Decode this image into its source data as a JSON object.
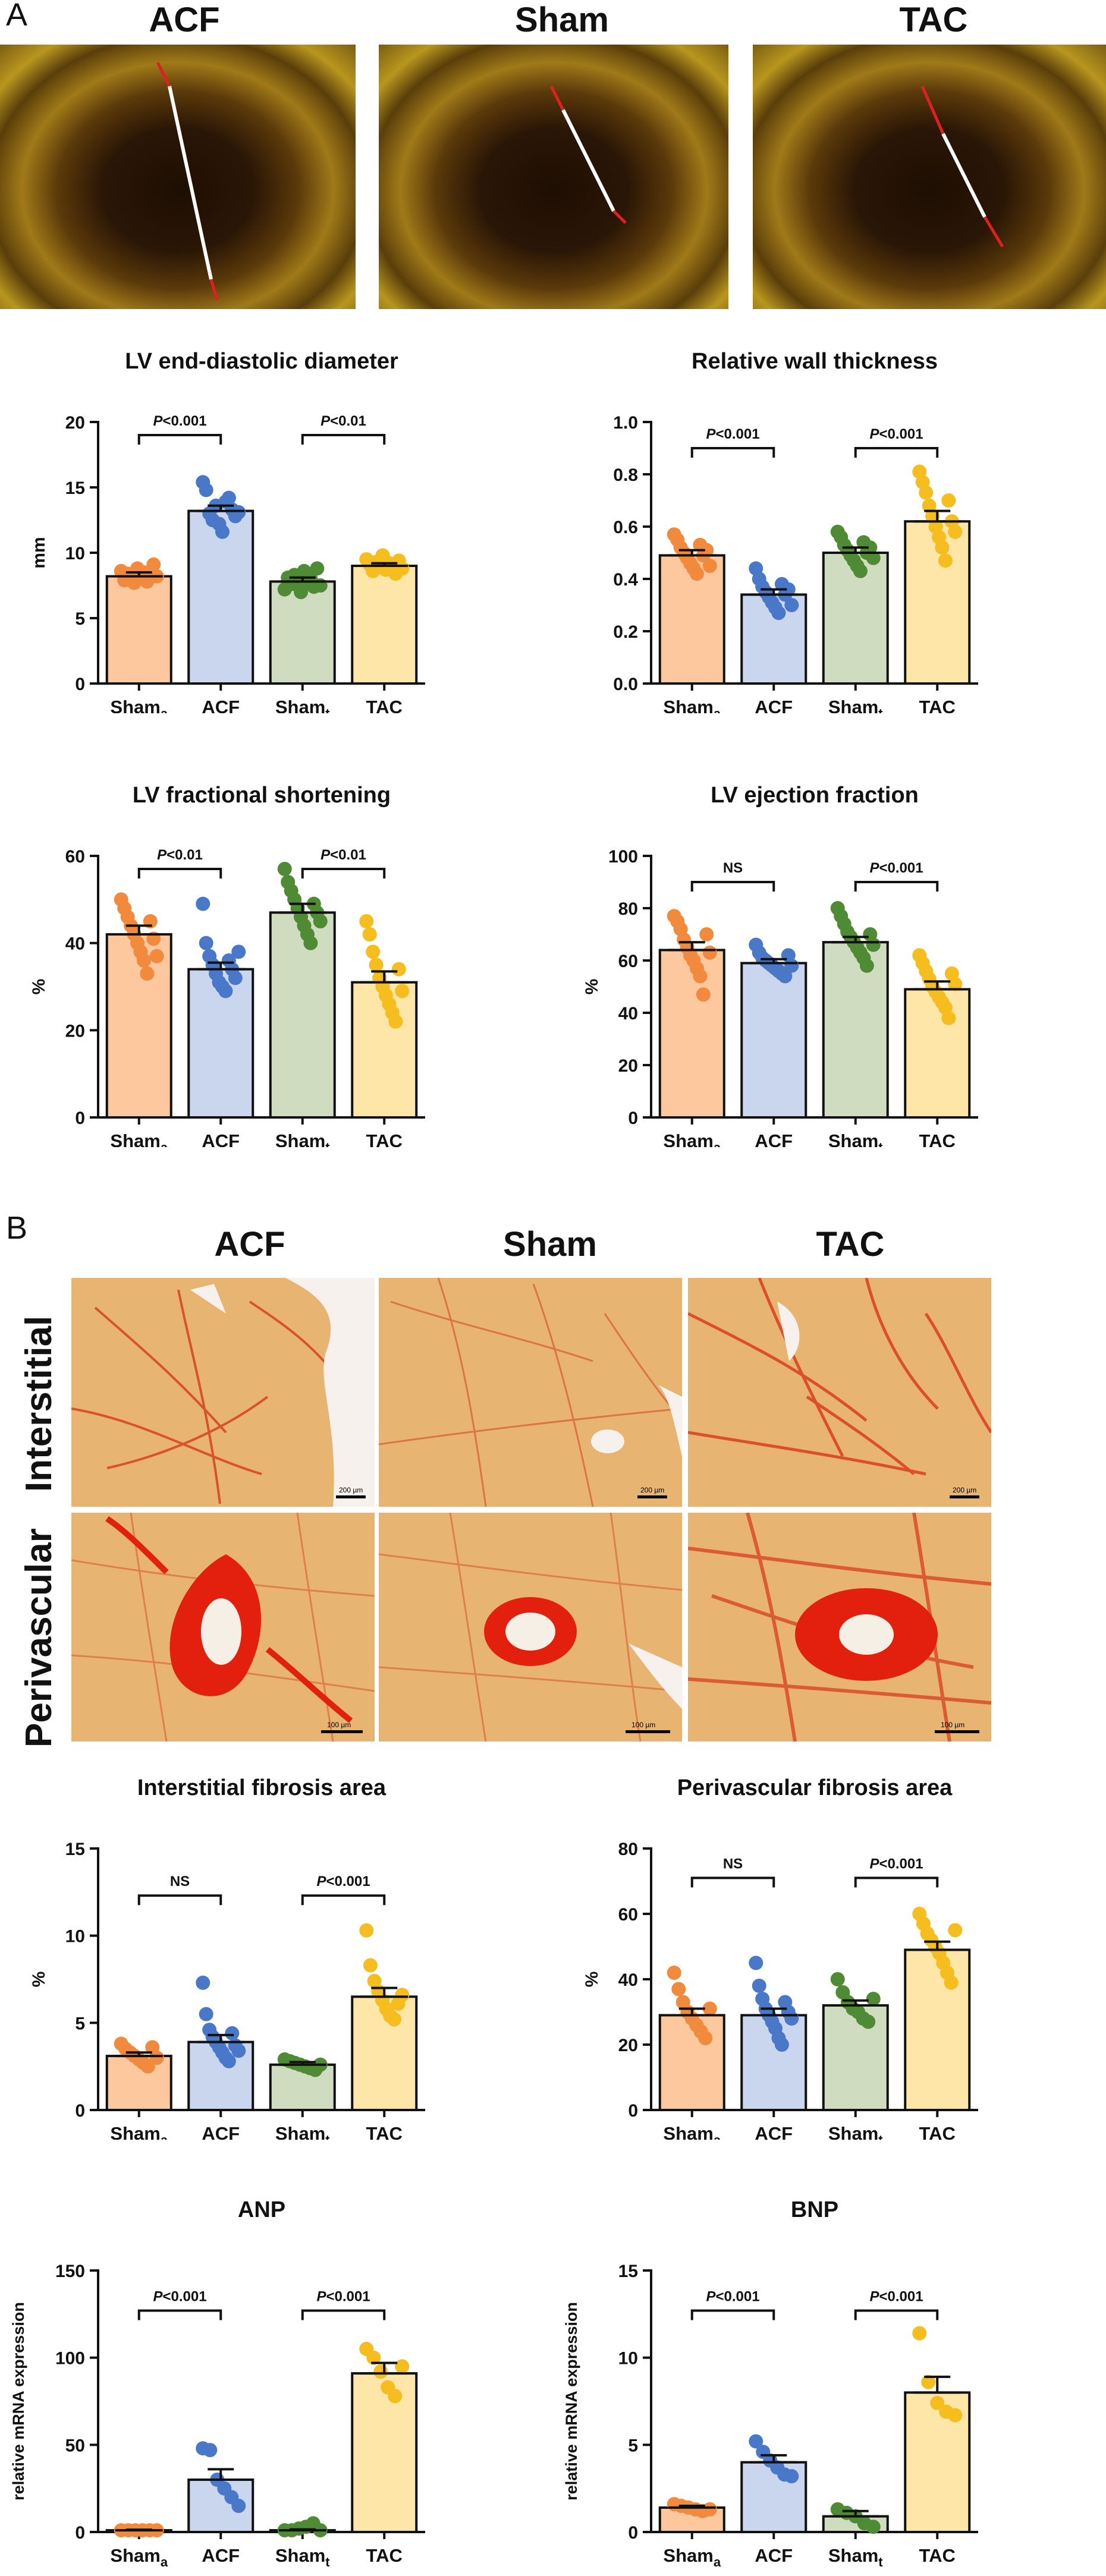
{
  "panels": {
    "a_label": "A",
    "b_label": "B"
  },
  "echo_titles": [
    "ACF",
    "Sham",
    "TAC"
  ],
  "histo_titles": [
    "ACF",
    "Sham",
    "TAC"
  ],
  "histo_rows": [
    "Interstitial",
    "Perivascular"
  ],
  "scale_labels": [
    "200 µm",
    "200 µm",
    "200 µm",
    "100 µm",
    "100 µm",
    "100 µm"
  ],
  "group_colors": [
    "#f28a3e",
    "#4a78c8",
    "#4f8a34",
    "#f5be1e"
  ],
  "group_fills": [
    "#fdc89e",
    "#c9d6ee",
    "#cfdcc0",
    "#fde6a8"
  ],
  "chart_data": [
    {
      "type": "bar",
      "title": "LV end-diastolic diameter",
      "ylabel": "mm",
      "categories": [
        [
          "Sham",
          "a"
        ],
        [
          "ACF",
          ""
        ],
        [
          "Sham",
          "t"
        ],
        [
          "TAC",
          ""
        ]
      ],
      "ylim": [
        0,
        20
      ],
      "yticks": [
        0,
        5,
        10,
        15,
        20
      ],
      "values": [
        8.2,
        13.2,
        7.8,
        9.0
      ],
      "errors": [
        0.3,
        0.4,
        0.3,
        0.2
      ],
      "points": [
        [
          8.6,
          7.9,
          8.4,
          8.0,
          7.7,
          8.8,
          8.3,
          8.5,
          7.8,
          8.1,
          9.1,
          8.2
        ],
        [
          15.4,
          14.8,
          13.0,
          12.5,
          13.6,
          12.2,
          11.6,
          13.9,
          14.2,
          13.3,
          12.8,
          13.1
        ],
        [
          7.2,
          8.1,
          7.6,
          8.3,
          7.9,
          7.0,
          8.6,
          7.7,
          8.0,
          7.4,
          8.8,
          7.5
        ],
        [
          9.5,
          9.1,
          8.6,
          9.3,
          8.9,
          9.8,
          8.7,
          9.2,
          9.0,
          8.4,
          9.4,
          8.8
        ]
      ],
      "sig": [
        {
          "label": "P<0.001",
          "p": "P",
          "rest": "<0.001",
          "pair": [
            0,
            1
          ],
          "y": 19.0
        },
        {
          "label": "P<0.01",
          "p": "P",
          "rest": "<0.01",
          "pair": [
            2,
            3
          ],
          "y": 19.0
        }
      ]
    },
    {
      "type": "bar",
      "title": "Relative wall thickness",
      "ylabel": "",
      "categories": [
        [
          "Sham",
          "a"
        ],
        [
          "ACF",
          ""
        ],
        [
          "Sham",
          "t"
        ],
        [
          "TAC",
          ""
        ]
      ],
      "ylim": [
        0,
        1.0
      ],
      "yticks": [
        0.0,
        0.2,
        0.4,
        0.6,
        0.8,
        1.0
      ],
      "values": [
        0.49,
        0.34,
        0.5,
        0.62
      ],
      "errors": [
        0.02,
        0.02,
        0.02,
        0.04
      ],
      "points": [
        [
          0.57,
          0.55,
          0.52,
          0.5,
          0.48,
          0.46,
          0.44,
          0.42,
          0.53,
          0.49,
          0.51,
          0.45
        ],
        [
          0.44,
          0.4,
          0.37,
          0.35,
          0.33,
          0.31,
          0.29,
          0.27,
          0.38,
          0.34,
          0.36,
          0.3
        ],
        [
          0.58,
          0.56,
          0.53,
          0.51,
          0.49,
          0.47,
          0.45,
          0.43,
          0.54,
          0.5,
          0.52,
          0.48
        ],
        [
          0.81,
          0.77,
          0.73,
          0.68,
          0.64,
          0.6,
          0.56,
          0.52,
          0.47,
          0.7,
          0.62,
          0.58
        ]
      ],
      "sig": [
        {
          "label": "P<0.001",
          "p": "P",
          "rest": "<0.001",
          "pair": [
            0,
            1
          ],
          "y": 0.9
        },
        {
          "label": "P<0.001",
          "p": "P",
          "rest": "<0.001",
          "pair": [
            2,
            3
          ],
          "y": 0.9
        }
      ]
    },
    {
      "type": "bar",
      "title": "LV fractional shortening",
      "ylabel": "%",
      "categories": [
        [
          "Sham",
          "a"
        ],
        [
          "ACF",
          ""
        ],
        [
          "Sham",
          "t"
        ],
        [
          "TAC",
          ""
        ]
      ],
      "ylim": [
        0,
        60
      ],
      "yticks": [
        0,
        20,
        40,
        60
      ],
      "values": [
        42,
        34,
        47,
        31
      ],
      "errors": [
        2,
        1.5,
        2,
        2.5
      ],
      "points": [
        [
          50,
          48,
          46,
          44,
          42,
          40,
          38,
          36,
          33,
          45,
          41,
          37
        ],
        [
          49,
          40,
          37,
          35,
          33,
          31,
          30,
          29,
          36,
          34,
          32,
          38
        ],
        [
          57,
          54,
          52,
          50,
          48,
          46,
          44,
          42,
          40,
          49,
          47,
          45
        ],
        [
          45,
          42,
          38,
          35,
          32,
          30,
          28,
          26,
          24,
          22,
          34,
          29
        ]
      ],
      "sig": [
        {
          "label": "P<0.01",
          "p": "P",
          "rest": "<0.01",
          "pair": [
            0,
            1
          ],
          "y": 57
        },
        {
          "label": "P<0.01",
          "p": "P",
          "rest": "<0.01",
          "pair": [
            2,
            3
          ],
          "y": 57
        }
      ]
    },
    {
      "type": "bar",
      "title": "LV ejection fraction",
      "ylabel": "%",
      "categories": [
        [
          "Sham",
          "a"
        ],
        [
          "ACF",
          ""
        ],
        [
          "Sham",
          "t"
        ],
        [
          "TAC",
          ""
        ]
      ],
      "ylim": [
        0,
        100
      ],
      "yticks": [
        0,
        20,
        40,
        60,
        80,
        100
      ],
      "values": [
        64,
        59,
        67,
        49
      ],
      "errors": [
        3,
        1.5,
        2,
        3
      ],
      "points": [
        [
          77,
          75,
          72,
          68,
          65,
          62,
          60,
          57,
          54,
          47,
          70,
          63
        ],
        [
          66,
          63,
          61,
          60,
          59,
          58,
          57,
          56,
          55,
          54,
          62,
          58
        ],
        [
          80,
          77,
          74,
          71,
          69,
          67,
          65,
          63,
          61,
          58,
          70,
          66
        ],
        [
          62,
          59,
          56,
          53,
          50,
          48,
          46,
          44,
          42,
          38,
          55,
          51
        ]
      ],
      "sig": [
        {
          "label": "NS",
          "p": "",
          "rest": "NS",
          "pair": [
            0,
            1
          ],
          "y": 90
        },
        {
          "label": "P<0.001",
          "p": "P",
          "rest": "<0.001",
          "pair": [
            2,
            3
          ],
          "y": 90
        }
      ]
    },
    {
      "type": "bar",
      "title": "Interstitial fibrosis area",
      "ylabel": "%",
      "categories": [
        [
          "Sham",
          "a"
        ],
        [
          "ACF",
          ""
        ],
        [
          "Sham",
          "t"
        ],
        [
          "TAC",
          ""
        ]
      ],
      "ylim": [
        0,
        15
      ],
      "yticks": [
        0,
        5,
        10,
        15
      ],
      "values": [
        3.1,
        3.9,
        2.6,
        6.5
      ],
      "errors": [
        0.2,
        0.4,
        0.15,
        0.5
      ],
      "points": [
        [
          3.8,
          3.5,
          3.3,
          3.1,
          2.9,
          2.7,
          2.5,
          3.6,
          3.0
        ],
        [
          7.3,
          5.5,
          4.6,
          4.2,
          3.9,
          3.6,
          3.3,
          3.0,
          2.8,
          4.4,
          3.7,
          3.4
        ],
        [
          2.9,
          2.8,
          2.7,
          2.6,
          2.5,
          2.4,
          2.3,
          2.6
        ],
        [
          10.3,
          8.3,
          7.4,
          6.8,
          6.3,
          5.8,
          5.4,
          5.2,
          6.1,
          6.6
        ]
      ],
      "sig": [
        {
          "label": "NS",
          "p": "",
          "rest": "NS",
          "pair": [
            0,
            1
          ],
          "y": 12.3
        },
        {
          "label": "P<0.001",
          "p": "P",
          "rest": "<0.001",
          "pair": [
            2,
            3
          ],
          "y": 12.3
        }
      ]
    },
    {
      "type": "bar",
      "title": "Perivascular fibrosis area",
      "ylabel": "%",
      "categories": [
        [
          "Sham",
          "a"
        ],
        [
          "ACF",
          ""
        ],
        [
          "Sham",
          "t"
        ],
        [
          "TAC",
          ""
        ]
      ],
      "ylim": [
        0,
        80
      ],
      "yticks": [
        0,
        20,
        40,
        60,
        80
      ],
      "values": [
        29,
        29,
        32,
        49
      ],
      "errors": [
        2,
        2,
        1.5,
        2.5
      ],
      "points": [
        [
          42,
          37,
          33,
          30,
          28,
          26,
          24,
          22,
          31
        ],
        [
          45,
          38,
          34,
          31,
          29,
          27,
          25,
          22,
          20,
          33,
          30,
          28
        ],
        [
          40,
          36,
          33,
          31,
          30,
          28,
          27,
          34
        ],
        [
          60,
          57,
          54,
          52,
          50,
          48,
          45,
          42,
          39,
          55
        ]
      ],
      "sig": [
        {
          "label": "NS",
          "p": "",
          "rest": "NS",
          "pair": [
            0,
            1
          ],
          "y": 71
        },
        {
          "label": "P<0.001",
          "p": "P",
          "rest": "<0.001",
          "pair": [
            2,
            3
          ],
          "y": 71
        }
      ]
    },
    {
      "type": "bar",
      "title": "ANP",
      "ylabel": "relative mRNA expression",
      "categories": [
        [
          "Sham",
          "a"
        ],
        [
          "ACF",
          ""
        ],
        [
          "Sham",
          "t"
        ],
        [
          "TAC",
          ""
        ]
      ],
      "ylim": [
        0,
        150
      ],
      "yticks": [
        0,
        50,
        100,
        150
      ],
      "values": [
        1,
        30,
        1,
        91
      ],
      "errors": [
        0.3,
        6,
        0.5,
        6
      ],
      "points": [
        [
          1,
          1,
          1,
          1,
          1,
          1
        ],
        [
          48,
          47,
          30,
          25,
          20,
          15
        ],
        [
          1,
          1,
          2,
          3,
          5,
          1
        ],
        [
          105,
          100,
          92,
          83,
          78,
          95
        ]
      ],
      "sig": [
        {
          "label": "P<0.001",
          "p": "P",
          "rest": "<0.001",
          "pair": [
            0,
            1
          ],
          "y": 127
        },
        {
          "label": "P<0.001",
          "p": "P",
          "rest": "<0.001",
          "pair": [
            2,
            3
          ],
          "y": 127
        }
      ]
    },
    {
      "type": "bar",
      "title": "BNP",
      "ylabel": "relative mRNA expression",
      "categories": [
        [
          "Sham",
          "a"
        ],
        [
          "ACF",
          ""
        ],
        [
          "Sham",
          "t"
        ],
        [
          "TAC",
          ""
        ]
      ],
      "ylim": [
        0,
        15
      ],
      "yticks": [
        0,
        5,
        10,
        15
      ],
      "values": [
        1.4,
        4.0,
        0.9,
        8.0
      ],
      "errors": [
        0.1,
        0.4,
        0.3,
        0.9
      ],
      "points": [
        [
          1.6,
          1.5,
          1.4,
          1.3,
          1.2,
          1.3
        ],
        [
          5.2,
          4.6,
          4.1,
          3.7,
          3.3,
          3.2
        ],
        [
          1.3,
          1.1,
          0.9,
          0.5,
          0.3
        ],
        [
          11.4,
          8.6,
          7.4,
          6.9,
          6.7
        ]
      ],
      "sig": [
        {
          "label": "P<0.001",
          "p": "P",
          "rest": "<0.001",
          "pair": [
            0,
            1
          ],
          "y": 12.7
        },
        {
          "label": "P<0.001",
          "p": "P",
          "rest": "<0.001",
          "pair": [
            2,
            3
          ],
          "y": 12.7
        }
      ]
    }
  ]
}
